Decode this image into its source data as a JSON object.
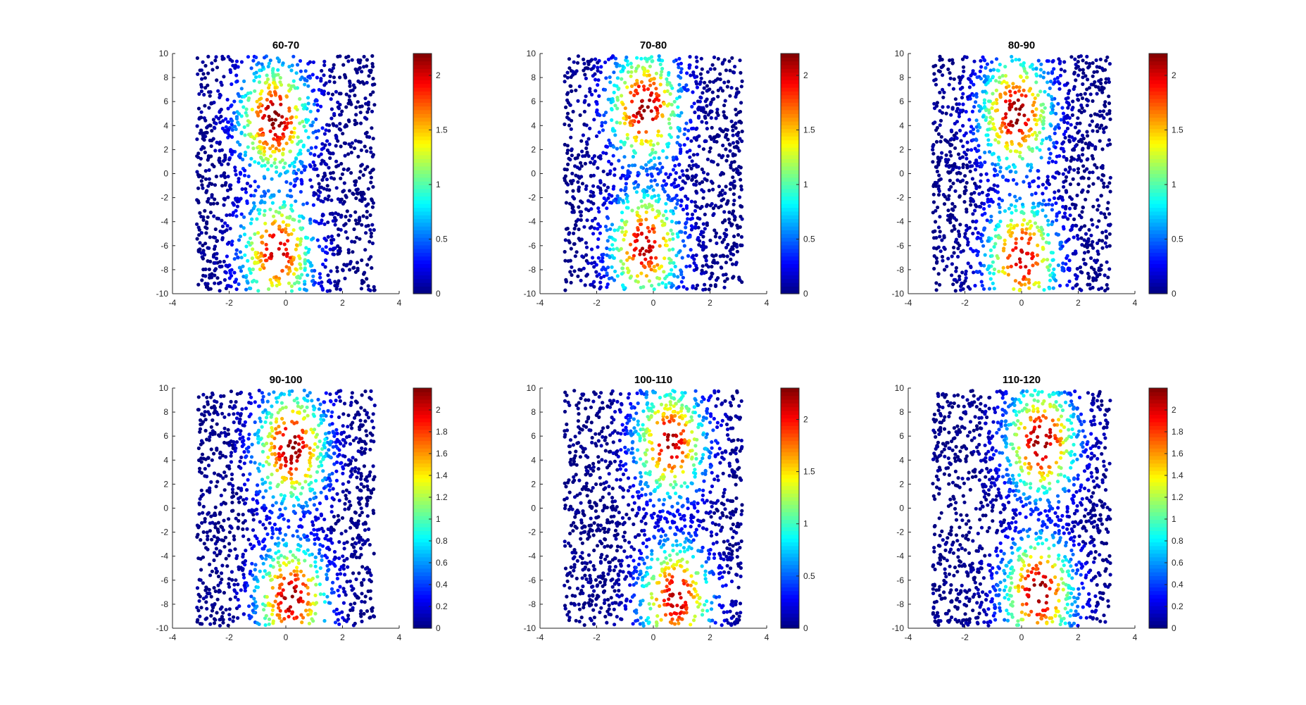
{
  "figure": {
    "background": "#ffffff",
    "axis_color": "#262626",
    "colormap": "jet"
  },
  "chart_data": [
    {
      "type": "scatter",
      "title": "60-70",
      "xlim": [
        -4,
        4
      ],
      "ylim": [
        -10,
        10
      ],
      "xticks": [
        "-4",
        "-2",
        "0",
        "2",
        "4"
      ],
      "yticks": [
        "-10",
        "-8",
        "-6",
        "-4",
        "-2",
        "0",
        "2",
        "4",
        "6",
        "8",
        "10"
      ],
      "x_range": [
        -3.14,
        3.14
      ],
      "color_range": [
        0,
        2.2
      ],
      "colorbar_ticks": [
        "0",
        "0.5",
        "1",
        "1.5",
        "2"
      ],
      "colorbar_tick_values": [
        0,
        0.5,
        1,
        1.5,
        2
      ],
      "hotspots": [
        {
          "x": -0.4,
          "y": 4.5,
          "peak": 2.2
        },
        {
          "x": -0.3,
          "y": -6.5,
          "peak": 2.1
        }
      ],
      "seed": 11
    },
    {
      "type": "scatter",
      "title": "70-80",
      "xlim": [
        -4,
        4
      ],
      "ylim": [
        -10,
        10
      ],
      "xticks": [
        "-4",
        "-2",
        "0",
        "2",
        "4"
      ],
      "yticks": [
        "-10",
        "-8",
        "-6",
        "-4",
        "-2",
        "0",
        "2",
        "4",
        "6",
        "8",
        "10"
      ],
      "x_range": [
        -3.14,
        3.14
      ],
      "color_range": [
        0,
        2.2
      ],
      "colorbar_ticks": [
        "0",
        "0.5",
        "1",
        "1.5",
        "2"
      ],
      "colorbar_tick_values": [
        0,
        0.5,
        1,
        1.5,
        2
      ],
      "hotspots": [
        {
          "x": -0.3,
          "y": 5.5,
          "peak": 2.2
        },
        {
          "x": -0.3,
          "y": -6.0,
          "peak": 2.1
        }
      ],
      "seed": 23
    },
    {
      "type": "scatter",
      "title": "80-90",
      "xlim": [
        -4,
        4
      ],
      "ylim": [
        -10,
        10
      ],
      "xticks": [
        "-4",
        "-2",
        "0",
        "2",
        "4"
      ],
      "yticks": [
        "-10",
        "-8",
        "-6",
        "-4",
        "-2",
        "0",
        "2",
        "4",
        "6",
        "8",
        "10"
      ],
      "x_range": [
        -3.14,
        3.14
      ],
      "color_range": [
        0,
        2.2
      ],
      "colorbar_ticks": [
        "0",
        "0.5",
        "1",
        "1.5",
        "2"
      ],
      "colorbar_tick_values": [
        0,
        0.5,
        1,
        1.5,
        2
      ],
      "hotspots": [
        {
          "x": -0.2,
          "y": 5.0,
          "peak": 2.2
        },
        {
          "x": 0.0,
          "y": -7.0,
          "peak": 2.1
        }
      ],
      "seed": 37
    },
    {
      "type": "scatter",
      "title": "90-100",
      "xlim": [
        -4,
        4
      ],
      "ylim": [
        -10,
        10
      ],
      "xticks": [
        "-4",
        "-2",
        "0",
        "2",
        "4"
      ],
      "yticks": [
        "-10",
        "-8",
        "-6",
        "-4",
        "-2",
        "0",
        "2",
        "4",
        "6",
        "8",
        "10"
      ],
      "x_range": [
        -3.14,
        3.14
      ],
      "color_range": [
        0,
        2.2
      ],
      "colorbar_ticks": [
        "0",
        "0.2",
        "0.4",
        "0.6",
        "0.8",
        "1",
        "1.2",
        "1.4",
        "1.6",
        "1.8",
        "2"
      ],
      "colorbar_tick_values": [
        0,
        0.2,
        0.4,
        0.6,
        0.8,
        1,
        1.2,
        1.4,
        1.6,
        1.8,
        2
      ],
      "hotspots": [
        {
          "x": 0.2,
          "y": 5.0,
          "peak": 2.2
        },
        {
          "x": 0.2,
          "y": -7.5,
          "peak": 2.15
        }
      ],
      "seed": 41
    },
    {
      "type": "scatter",
      "title": "100-110",
      "xlim": [
        -4,
        4
      ],
      "ylim": [
        -10,
        10
      ],
      "xticks": [
        "-4",
        "-2",
        "0",
        "2",
        "4"
      ],
      "yticks": [
        "-10",
        "-8",
        "-6",
        "-4",
        "-2",
        "0",
        "2",
        "4",
        "6",
        "8",
        "10"
      ],
      "x_range": [
        -3.14,
        3.14
      ],
      "color_range": [
        0,
        2.3
      ],
      "colorbar_ticks": [
        "0",
        "0.5",
        "1",
        "1.5",
        "2"
      ],
      "colorbar_tick_values": [
        0,
        0.5,
        1,
        1.5,
        2
      ],
      "hotspots": [
        {
          "x": 0.6,
          "y": 5.5,
          "peak": 2.2
        },
        {
          "x": 0.8,
          "y": -7.5,
          "peak": 2.2
        }
      ],
      "seed": 53
    },
    {
      "type": "scatter",
      "title": "110-120",
      "xlim": [
        -4,
        4
      ],
      "ylim": [
        -10,
        10
      ],
      "xticks": [
        "-4",
        "-2",
        "0",
        "2",
        "4"
      ],
      "yticks": [
        "-10",
        "-8",
        "-6",
        "-4",
        "-2",
        "0",
        "2",
        "4",
        "6",
        "8",
        "10"
      ],
      "x_range": [
        -3.14,
        3.14
      ],
      "color_range": [
        0,
        2.2
      ],
      "colorbar_ticks": [
        "0",
        "0.2",
        "0.4",
        "0.6",
        "0.8",
        "1",
        "1.2",
        "1.4",
        "1.6",
        "1.8",
        "2"
      ],
      "colorbar_tick_values": [
        0,
        0.2,
        0.4,
        0.6,
        0.8,
        1,
        1.2,
        1.4,
        1.6,
        1.8,
        2
      ],
      "hotspots": [
        {
          "x": 0.7,
          "y": 5.5,
          "peak": 2.2
        },
        {
          "x": 0.6,
          "y": -7.0,
          "peak": 2.2
        }
      ],
      "seed": 67
    }
  ]
}
